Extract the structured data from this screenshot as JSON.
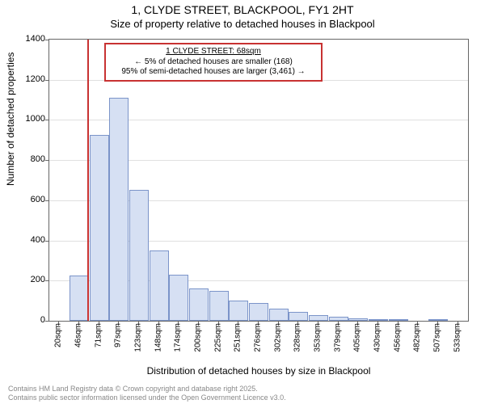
{
  "title": "1, CLYDE STREET, BLACKPOOL, FY1 2HT",
  "subtitle": "Size of property relative to detached houses in Blackpool",
  "ylabel": "Number of detached properties",
  "xlabel": "Distribution of detached houses by size in Blackpool",
  "footer_line1": "Contains HM Land Registry data © Crown copyright and database right 2025.",
  "footer_line2": "Contains public sector information licensed under the Open Government Licence v3.0.",
  "chart": {
    "type": "histogram",
    "background_color": "#ffffff",
    "grid_color": "#e0e0e0",
    "axis_color": "#666666",
    "bar_fill": "#d6e0f3",
    "bar_stroke": "#7b94c9",
    "marker_color": "#c83232",
    "ylim_max": 1400,
    "ytick_step": 200,
    "yticks": [
      0,
      200,
      400,
      600,
      800,
      1000,
      1200,
      1400
    ],
    "categories": [
      "20sqm",
      "46sqm",
      "71sqm",
      "97sqm",
      "123sqm",
      "148sqm",
      "174sqm",
      "200sqm",
      "225sqm",
      "251sqm",
      "276sqm",
      "302sqm",
      "328sqm",
      "353sqm",
      "379sqm",
      "405sqm",
      "430sqm",
      "456sqm",
      "482sqm",
      "507sqm",
      "533sqm"
    ],
    "values": [
      0,
      225,
      925,
      1110,
      650,
      350,
      230,
      160,
      150,
      100,
      90,
      60,
      45,
      30,
      20,
      12,
      5,
      3,
      0,
      10,
      0
    ],
    "marker_x_value": 68,
    "x_range_min": 20,
    "x_range_max": 546,
    "callout": {
      "line1": "1 CLYDE STREET: 68sqm",
      "line2": "← 5% of detached houses are smaller (168)",
      "line3": "95% of semi-detached houses are larger (3,461) →"
    },
    "label_fontsize": 12,
    "tick_fontsize": 11,
    "xtick_fontsize": 10,
    "callout_fontsize": 10
  }
}
